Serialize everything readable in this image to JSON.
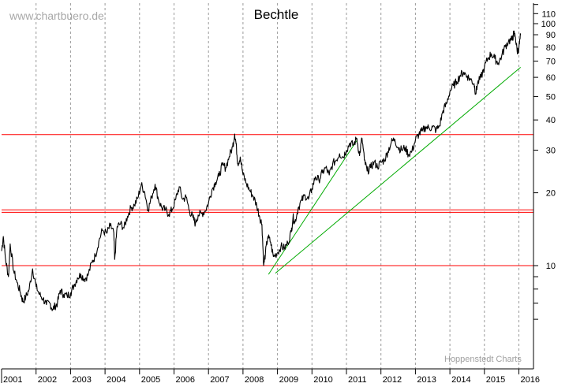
{
  "chart_data": {
    "type": "line",
    "title": "Bechtle",
    "watermark": "www.chartbuero.de",
    "credit": "Hoppenstedt Charts",
    "y_scale": "log",
    "ylim": [
      5.6,
      120
    ],
    "xlim": [
      2001.0,
      2016.05
    ],
    "y_ticks": [
      {
        "value": 10,
        "label": "10"
      },
      {
        "value": 20,
        "label": "20"
      },
      {
        "value": 30,
        "label": "30"
      },
      {
        "value": 40,
        "label": "40"
      },
      {
        "value": 50,
        "label": "50"
      },
      {
        "value": 60,
        "label": "60"
      },
      {
        "value": 70,
        "label": "70"
      },
      {
        "value": 80,
        "label": "80"
      },
      {
        "value": 90,
        "label": "90"
      },
      {
        "value": 100,
        "label": "100"
      },
      {
        "value": 110,
        "label": "110"
      }
    ],
    "y_minor_ticks": [
      6,
      7,
      8,
      9,
      120
    ],
    "x_ticks": [
      {
        "value": 2001,
        "label": "2001"
      },
      {
        "value": 2002,
        "label": "2002"
      },
      {
        "value": 2003,
        "label": "2003"
      },
      {
        "value": 2004,
        "label": "2004"
      },
      {
        "value": 2005,
        "label": "2005"
      },
      {
        "value": 2006,
        "label": "2006"
      },
      {
        "value": 2007,
        "label": "2007"
      },
      {
        "value": 2008,
        "label": "2008"
      },
      {
        "value": 2009,
        "label": "2009"
      },
      {
        "value": 2010,
        "label": "2010"
      },
      {
        "value": 2011,
        "label": "2011"
      },
      {
        "value": 2012,
        "label": "2012"
      },
      {
        "value": 2013,
        "label": "2013"
      },
      {
        "value": 2014,
        "label": "2014"
      },
      {
        "value": 2015,
        "label": "2015"
      },
      {
        "value": 2016,
        "label": "2016"
      }
    ],
    "grid": "vertical dashed at each year",
    "series": [
      {
        "color": "#000000",
        "points": [
          [
            2001.0,
            11.5
          ],
          [
            2001.05,
            13.2
          ],
          [
            2001.12,
            10.5
          ],
          [
            2001.2,
            9.0
          ],
          [
            2001.25,
            12.3
          ],
          [
            2001.35,
            9.5
          ],
          [
            2001.45,
            8.5
          ],
          [
            2001.55,
            7.7
          ],
          [
            2001.62,
            7.1
          ],
          [
            2001.7,
            7.4
          ],
          [
            2001.8,
            8.0
          ],
          [
            2001.9,
            9.7
          ],
          [
            2002.0,
            8.2
          ],
          [
            2002.1,
            7.6
          ],
          [
            2002.2,
            7.3
          ],
          [
            2002.3,
            6.9
          ],
          [
            2002.4,
            7.0
          ],
          [
            2002.48,
            6.6
          ],
          [
            2002.55,
            6.8
          ],
          [
            2002.62,
            7.0
          ],
          [
            2002.7,
            7.9
          ],
          [
            2002.8,
            7.6
          ],
          [
            2002.9,
            7.5
          ],
          [
            2003.0,
            7.7
          ],
          [
            2003.1,
            8.3
          ],
          [
            2003.2,
            8.9
          ],
          [
            2003.3,
            9.2
          ],
          [
            2003.4,
            8.8
          ],
          [
            2003.5,
            9.1
          ],
          [
            2003.62,
            10.3
          ],
          [
            2003.72,
            11.0
          ],
          [
            2003.82,
            12.6
          ],
          [
            2003.92,
            14.0
          ],
          [
            2004.05,
            13.6
          ],
          [
            2004.15,
            14.6
          ],
          [
            2004.25,
            13.8
          ],
          [
            2004.28,
            10.6
          ],
          [
            2004.35,
            14.5
          ],
          [
            2004.45,
            14.9
          ],
          [
            2004.55,
            14.3
          ],
          [
            2004.65,
            16.0
          ],
          [
            2004.75,
            17.3
          ],
          [
            2004.85,
            17.8
          ],
          [
            2004.95,
            19.0
          ],
          [
            2005.05,
            21.6
          ],
          [
            2005.15,
            20.1
          ],
          [
            2005.25,
            17.0
          ],
          [
            2005.35,
            19.2
          ],
          [
            2005.45,
            21.7
          ],
          [
            2005.55,
            18.7
          ],
          [
            2005.65,
            17.3
          ],
          [
            2005.75,
            17.0
          ],
          [
            2005.85,
            16.3
          ],
          [
            2005.95,
            17.1
          ],
          [
            2006.05,
            18.8
          ],
          [
            2006.15,
            21.2
          ],
          [
            2006.25,
            18.8
          ],
          [
            2006.35,
            19.2
          ],
          [
            2006.45,
            16.8
          ],
          [
            2006.55,
            15.8
          ],
          [
            2006.62,
            14.9
          ],
          [
            2006.7,
            16.2
          ],
          [
            2006.8,
            16.4
          ],
          [
            2006.9,
            16.8
          ],
          [
            2007.0,
            18.2
          ],
          [
            2007.1,
            20.6
          ],
          [
            2007.2,
            22.1
          ],
          [
            2007.3,
            23.4
          ],
          [
            2007.4,
            26.0
          ],
          [
            2007.5,
            25.4
          ],
          [
            2007.6,
            28.2
          ],
          [
            2007.7,
            31.0
          ],
          [
            2007.76,
            35.0
          ],
          [
            2007.8,
            31.8
          ],
          [
            2007.85,
            26.3
          ],
          [
            2007.92,
            28.1
          ],
          [
            2008.0,
            23.8
          ],
          [
            2008.1,
            21.8
          ],
          [
            2008.2,
            20.4
          ],
          [
            2008.3,
            19.3
          ],
          [
            2008.4,
            17.7
          ],
          [
            2008.48,
            16.0
          ],
          [
            2008.55,
            14.8
          ],
          [
            2008.6,
            10.0
          ],
          [
            2008.65,
            11.2
          ],
          [
            2008.72,
            13.2
          ],
          [
            2008.8,
            12.5
          ],
          [
            2008.88,
            10.9
          ],
          [
            2009.0,
            11.3
          ],
          [
            2009.1,
            12.0
          ],
          [
            2009.2,
            11.8
          ],
          [
            2009.3,
            12.4
          ],
          [
            2009.4,
            13.8
          ],
          [
            2009.45,
            15.9
          ],
          [
            2009.5,
            15.0
          ],
          [
            2009.6,
            17.3
          ],
          [
            2009.7,
            18.6
          ],
          [
            2009.8,
            19.5
          ],
          [
            2009.9,
            18.8
          ],
          [
            2010.0,
            20.8
          ],
          [
            2010.1,
            23.3
          ],
          [
            2010.2,
            22.6
          ],
          [
            2010.3,
            24.2
          ],
          [
            2010.4,
            25.4
          ],
          [
            2010.5,
            23.7
          ],
          [
            2010.6,
            26.3
          ],
          [
            2010.7,
            27.3
          ],
          [
            2010.8,
            29.0
          ],
          [
            2010.9,
            28.1
          ],
          [
            2011.0,
            30.0
          ],
          [
            2011.1,
            32.1
          ],
          [
            2011.2,
            31.5
          ],
          [
            2011.3,
            33.6
          ],
          [
            2011.38,
            28.5
          ],
          [
            2011.45,
            33.6
          ],
          [
            2011.52,
            27.3
          ],
          [
            2011.6,
            24.6
          ],
          [
            2011.7,
            25.4
          ],
          [
            2011.8,
            26.8
          ],
          [
            2011.9,
            25.6
          ],
          [
            2012.0,
            26.7
          ],
          [
            2012.1,
            27.3
          ],
          [
            2012.2,
            29.6
          ],
          [
            2012.3,
            32.3
          ],
          [
            2012.4,
            33.3
          ],
          [
            2012.5,
            30.7
          ],
          [
            2012.6,
            30.1
          ],
          [
            2012.7,
            30.7
          ],
          [
            2012.8,
            28.8
          ],
          [
            2012.9,
            29.7
          ],
          [
            2013.0,
            33.0
          ],
          [
            2013.1,
            35.0
          ],
          [
            2013.2,
            36.0
          ],
          [
            2013.3,
            37.4
          ],
          [
            2013.4,
            37.0
          ],
          [
            2013.5,
            37.4
          ],
          [
            2013.6,
            36.3
          ],
          [
            2013.7,
            37.8
          ],
          [
            2013.8,
            43.7
          ],
          [
            2013.9,
            46.6
          ],
          [
            2014.0,
            52.5
          ],
          [
            2014.1,
            55.5
          ],
          [
            2014.2,
            57.6
          ],
          [
            2014.3,
            61.2
          ],
          [
            2014.4,
            63.0
          ],
          [
            2014.5,
            60.7
          ],
          [
            2014.6,
            58.8
          ],
          [
            2014.7,
            56.5
          ],
          [
            2014.75,
            51.4
          ],
          [
            2014.8,
            56.5
          ],
          [
            2014.9,
            60.0
          ],
          [
            2015.0,
            65.9
          ],
          [
            2015.1,
            71.8
          ],
          [
            2015.2,
            75.1
          ],
          [
            2015.3,
            71.8
          ],
          [
            2015.4,
            68.8
          ],
          [
            2015.5,
            73.5
          ],
          [
            2015.6,
            80.4
          ],
          [
            2015.7,
            84.8
          ],
          [
            2015.8,
            85.6
          ],
          [
            2015.85,
            91.0
          ],
          [
            2015.9,
            87.9
          ],
          [
            2015.95,
            76.8
          ],
          [
            2016.0,
            79.2
          ],
          [
            2016.05,
            89.6
          ]
        ]
      }
    ],
    "horizontal_lines": [
      {
        "color": "#ff0000",
        "value": 34.8
      },
      {
        "color": "#ff0000",
        "value": 17.0
      },
      {
        "color": "#ff0000",
        "value": 16.6
      },
      {
        "color": "#ff0000",
        "value": 10.0
      }
    ],
    "trendlines": [
      {
        "color": "#00aa00",
        "from": [
          2008.74,
          9.2
        ],
        "to": [
          2011.32,
          33.2
        ]
      },
      {
        "color": "#00aa00",
        "from": [
          2008.94,
          9.3
        ],
        "to": [
          2016.05,
          66.0
        ]
      }
    ]
  }
}
